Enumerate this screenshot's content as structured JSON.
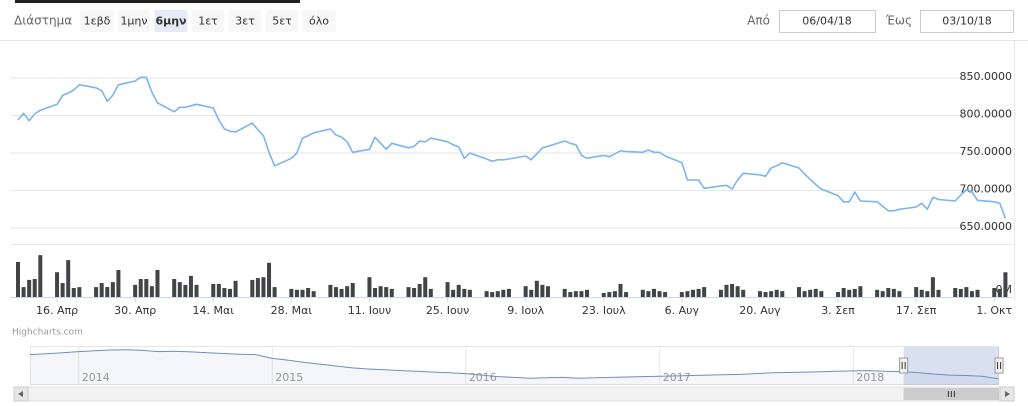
{
  "range_selector": {
    "label": "Διάστημα",
    "buttons": [
      "1εβδ",
      "1μην",
      "6μην",
      "1ετ",
      "3ετ",
      "5ετ",
      "όλο"
    ],
    "selected": 2,
    "from_label": "Από",
    "from": "06/04/18",
    "to_label": "Έως",
    "to": "03/10/18"
  },
  "credits": "Highcharts.com",
  "chart_data": [
    {
      "type": "line",
      "x": [
        "2018-04-09",
        "2018-04-10",
        "2018-04-11",
        "2018-04-12",
        "2018-04-13",
        "2018-04-16",
        "2018-04-17",
        "2018-04-18",
        "2018-04-19",
        "2018-04-20",
        "2018-04-23",
        "2018-04-24",
        "2018-04-25",
        "2018-04-26",
        "2018-04-27",
        "2018-04-30",
        "2018-05-01",
        "2018-05-02",
        "2018-05-03",
        "2018-05-04",
        "2018-05-07",
        "2018-05-08",
        "2018-05-09",
        "2018-05-10",
        "2018-05-11",
        "2018-05-14",
        "2018-05-15",
        "2018-05-16",
        "2018-05-17",
        "2018-05-18",
        "2018-05-21",
        "2018-05-22",
        "2018-05-23",
        "2018-05-24",
        "2018-05-25",
        "2018-05-28",
        "2018-05-29",
        "2018-05-30",
        "2018-05-31",
        "2018-06-01",
        "2018-06-04",
        "2018-06-05",
        "2018-06-06",
        "2018-06-07",
        "2018-06-08",
        "2018-06-11",
        "2018-06-12",
        "2018-06-13",
        "2018-06-14",
        "2018-06-15",
        "2018-06-18",
        "2018-06-19",
        "2018-06-20",
        "2018-06-21",
        "2018-06-22",
        "2018-06-25",
        "2018-06-26",
        "2018-06-27",
        "2018-06-28",
        "2018-06-29",
        "2018-07-02",
        "2018-07-03",
        "2018-07-04",
        "2018-07-05",
        "2018-07-06",
        "2018-07-09",
        "2018-07-10",
        "2018-07-11",
        "2018-07-12",
        "2018-07-13",
        "2018-07-16",
        "2018-07-17",
        "2018-07-18",
        "2018-07-19",
        "2018-07-20",
        "2018-07-23",
        "2018-07-24",
        "2018-07-25",
        "2018-07-26",
        "2018-07-27",
        "2018-07-30",
        "2018-07-31",
        "2018-08-01",
        "2018-08-02",
        "2018-08-03",
        "2018-08-06",
        "2018-08-07",
        "2018-08-08",
        "2018-08-09",
        "2018-08-10",
        "2018-08-13",
        "2018-08-14",
        "2018-08-15",
        "2018-08-16",
        "2018-08-17",
        "2018-08-20",
        "2018-08-21",
        "2018-08-22",
        "2018-08-23",
        "2018-08-24",
        "2018-08-27",
        "2018-08-28",
        "2018-08-29",
        "2018-08-30",
        "2018-08-31",
        "2018-09-03",
        "2018-09-04",
        "2018-09-05",
        "2018-09-06",
        "2018-09-07",
        "2018-09-10",
        "2018-09-11",
        "2018-09-12",
        "2018-09-13",
        "2018-09-14",
        "2018-09-17",
        "2018-09-18",
        "2018-09-19",
        "2018-09-20",
        "2018-09-21",
        "2018-09-24",
        "2018-09-25",
        "2018-09-26",
        "2018-09-27",
        "2018-09-28",
        "2018-10-01",
        "2018-10-02",
        "2018-10-03"
      ],
      "series": [
        {
          "type": "line",
          "color": "#7cb5ec",
          "values": [
            794,
            803,
            793,
            802,
            807,
            815,
            827,
            830,
            834,
            841,
            837,
            833,
            819,
            827,
            841,
            846,
            851,
            851,
            831,
            817,
            805,
            811,
            811,
            813,
            815,
            810,
            794,
            782,
            779,
            778,
            790,
            781,
            773,
            751,
            733,
            743,
            750,
            770,
            773,
            777,
            782,
            774,
            771,
            765,
            751,
            755,
            771,
            763,
            755,
            763,
            757,
            759,
            766,
            765,
            770,
            765,
            761,
            758,
            743,
            750,
            742,
            739,
            741,
            741,
            742,
            746,
            741,
            749,
            757,
            759,
            766,
            763,
            761,
            747,
            743,
            747,
            745,
            749,
            753,
            752,
            751,
            754,
            751,
            751,
            746,
            737,
            714,
            714,
            714,
            703,
            706,
            707,
            702,
            714,
            723,
            721,
            719,
            730,
            733,
            737,
            730,
            722,
            715,
            708,
            702,
            693,
            685,
            685,
            698,
            686,
            685,
            679,
            673,
            673,
            675,
            678,
            683,
            675,
            691,
            688,
            686,
            694,
            701,
            698,
            687,
            685,
            683,
            663
          ]
        },
        {
          "type": "bar",
          "axis": "y2",
          "color": "#434348",
          "values": [
            7.8,
            2.2,
            3.8,
            4.0,
            9.3,
            5.5,
            3.1,
            8.2,
            2.0,
            2.2,
            2.2,
            3.1,
            2.2,
            3.3,
            6.0,
            2.7,
            4.0,
            4.0,
            2.4,
            6.0,
            4.0,
            3.3,
            2.7,
            4.7,
            2.7,
            2.9,
            2.9,
            2.0,
            1.8,
            3.6,
            3.8,
            4.2,
            4.4,
            7.6,
            2.2,
            1.8,
            1.6,
            1.6,
            2.0,
            1.3,
            2.7,
            2.2,
            1.8,
            2.4,
            3.1,
            4.4,
            2.0,
            2.4,
            2.2,
            1.8,
            2.2,
            2.0,
            2.9,
            4.4,
            1.8,
            3.3,
            1.6,
            2.7,
            1.8,
            1.6,
            1.3,
            1.1,
            1.3,
            1.6,
            1.8,
            2.4,
            1.6,
            3.6,
            2.7,
            2.4,
            1.8,
            1.1,
            1.3,
            1.3,
            1.6,
            0.9,
            1.1,
            1.3,
            2.9,
            1.1,
            1.6,
            1.3,
            1.8,
            1.3,
            1.1,
            1.1,
            1.3,
            1.6,
            1.8,
            2.2,
            1.6,
            2.7,
            2.9,
            2.4,
            1.6,
            1.3,
            1.1,
            1.3,
            1.6,
            1.3,
            2.2,
            1.3,
            1.6,
            1.8,
            1.3,
            1.1,
            2.0,
            1.6,
            1.8,
            2.4,
            1.6,
            1.3,
            2.0,
            1.8,
            1.3,
            2.2,
            1.6,
            1.3,
            4.4,
            1.6,
            2.0,
            1.8,
            2.2,
            1.3,
            1.6,
            2.0,
            1.8,
            5.5
          ]
        }
      ],
      "xlim": [
        "2018-04-09",
        "2018-10-04"
      ],
      "xticks": [
        {
          "value": "2018-04-16",
          "label": "16. Απρ"
        },
        {
          "value": "2018-04-30",
          "label": "30. Απρ"
        },
        {
          "value": "2018-05-14",
          "label": "14. Μαι"
        },
        {
          "value": "2018-05-28",
          "label": "28. Μαι"
        },
        {
          "value": "2018-06-11",
          "label": "11. Ιουν"
        },
        {
          "value": "2018-06-25",
          "label": "25. Ιουν"
        },
        {
          "value": "2018-07-09",
          "label": "9. Ιουλ"
        },
        {
          "value": "2018-07-23",
          "label": "23. Ιουλ"
        },
        {
          "value": "2018-08-06",
          "label": "6. Αυγ"
        },
        {
          "value": "2018-08-20",
          "label": "20. Αυγ"
        },
        {
          "value": "2018-09-03",
          "label": "3. Σεπ"
        },
        {
          "value": "2018-09-17",
          "label": "17. Σεπ"
        },
        {
          "value": "2018-10-01",
          "label": "1. Οκτ"
        }
      ],
      "ylim": [
        640,
        900
      ],
      "yticks": [
        {
          "value": 650,
          "label": "650.0000"
        },
        {
          "value": 700,
          "label": "700.0000"
        },
        {
          "value": 750,
          "label": "750.0000"
        },
        {
          "value": 800,
          "label": "800.0000"
        },
        {
          "value": 850,
          "label": "850.0000"
        }
      ],
      "y2lim": [
        0,
        10
      ],
      "y2ticks": [
        {
          "value": 0,
          "label": "0M"
        }
      ],
      "grid": true
    },
    {
      "type": "area",
      "color": "#6f8fbf",
      "x": [
        "2013-10",
        "2013-11",
        "2013-12",
        "2014-01",
        "2014-02",
        "2014-03",
        "2014-04",
        "2014-05",
        "2014-06",
        "2014-07",
        "2014-08",
        "2014-09",
        "2014-10",
        "2014-11",
        "2014-12",
        "2015-01",
        "2015-02",
        "2015-03",
        "2015-04",
        "2015-05",
        "2015-06",
        "2015-07",
        "2015-08",
        "2015-09",
        "2015-10",
        "2015-11",
        "2015-12",
        "2016-01",
        "2016-02",
        "2016-03",
        "2016-04",
        "2016-05",
        "2016-06",
        "2016-07",
        "2016-08",
        "2016-09",
        "2016-10",
        "2016-11",
        "2016-12",
        "2017-01",
        "2017-02",
        "2017-03",
        "2017-04",
        "2017-05",
        "2017-06",
        "2017-07",
        "2017-08",
        "2017-09",
        "2017-10",
        "2017-11",
        "2017-12",
        "2018-01",
        "2018-02",
        "2018-03",
        "2018-04",
        "2018-05",
        "2018-06",
        "2018-07",
        "2018-08",
        "2018-09",
        "2018-10"
      ],
      "values": [
        1300,
        1320,
        1350,
        1380,
        1400,
        1420,
        1430,
        1410,
        1380,
        1390,
        1370,
        1350,
        1330,
        1310,
        1300,
        1200,
        1150,
        1100,
        1050,
        1000,
        950,
        920,
        900,
        880,
        860,
        840,
        820,
        800,
        760,
        720,
        700,
        680,
        690,
        700,
        680,
        690,
        700,
        710,
        720,
        730,
        740,
        750,
        760,
        770,
        780,
        800,
        820,
        830,
        840,
        850,
        860,
        870,
        880,
        860,
        850,
        830,
        790,
        760,
        750,
        730,
        663
      ],
      "xlim": [
        "2013-10",
        "2018-10"
      ],
      "ylim": [
        500,
        1500
      ],
      "xticks": [
        {
          "value": "2014-01",
          "label": "2014"
        },
        {
          "value": "2015-01",
          "label": "2015"
        },
        {
          "value": "2016-01",
          "label": "2016"
        },
        {
          "value": "2017-01",
          "label": "2017"
        },
        {
          "value": "2018-01",
          "label": "2018"
        }
      ]
    }
  ]
}
